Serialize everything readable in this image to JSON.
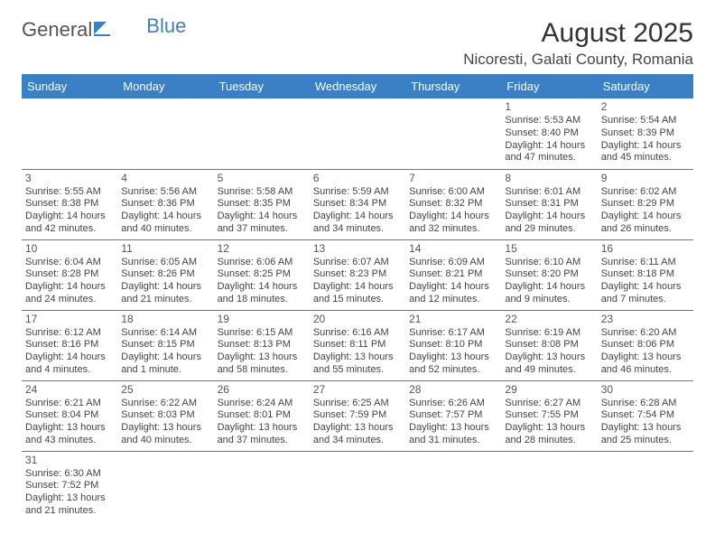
{
  "logo": {
    "text_general": "General",
    "text_blue": "Blue"
  },
  "header": {
    "month_title": "August 2025",
    "location": "Nicoresti, Galati County, Romania"
  },
  "colors": {
    "header_bg": "#3b7fc4",
    "header_text": "#ffffff",
    "row_border": "#3b7fc4",
    "body_text": "#444444",
    "background": "#ffffff"
  },
  "calendar": {
    "day_headers": [
      "Sunday",
      "Monday",
      "Tuesday",
      "Wednesday",
      "Thursday",
      "Friday",
      "Saturday"
    ],
    "weeks": [
      [
        null,
        null,
        null,
        null,
        null,
        {
          "day": "1",
          "sunrise": "Sunrise: 5:53 AM",
          "sunset": "Sunset: 8:40 PM",
          "daylight1": "Daylight: 14 hours",
          "daylight2": "and 47 minutes."
        },
        {
          "day": "2",
          "sunrise": "Sunrise: 5:54 AM",
          "sunset": "Sunset: 8:39 PM",
          "daylight1": "Daylight: 14 hours",
          "daylight2": "and 45 minutes."
        }
      ],
      [
        {
          "day": "3",
          "sunrise": "Sunrise: 5:55 AM",
          "sunset": "Sunset: 8:38 PM",
          "daylight1": "Daylight: 14 hours",
          "daylight2": "and 42 minutes."
        },
        {
          "day": "4",
          "sunrise": "Sunrise: 5:56 AM",
          "sunset": "Sunset: 8:36 PM",
          "daylight1": "Daylight: 14 hours",
          "daylight2": "and 40 minutes."
        },
        {
          "day": "5",
          "sunrise": "Sunrise: 5:58 AM",
          "sunset": "Sunset: 8:35 PM",
          "daylight1": "Daylight: 14 hours",
          "daylight2": "and 37 minutes."
        },
        {
          "day": "6",
          "sunrise": "Sunrise: 5:59 AM",
          "sunset": "Sunset: 8:34 PM",
          "daylight1": "Daylight: 14 hours",
          "daylight2": "and 34 minutes."
        },
        {
          "day": "7",
          "sunrise": "Sunrise: 6:00 AM",
          "sunset": "Sunset: 8:32 PM",
          "daylight1": "Daylight: 14 hours",
          "daylight2": "and 32 minutes."
        },
        {
          "day": "8",
          "sunrise": "Sunrise: 6:01 AM",
          "sunset": "Sunset: 8:31 PM",
          "daylight1": "Daylight: 14 hours",
          "daylight2": "and 29 minutes."
        },
        {
          "day": "9",
          "sunrise": "Sunrise: 6:02 AM",
          "sunset": "Sunset: 8:29 PM",
          "daylight1": "Daylight: 14 hours",
          "daylight2": "and 26 minutes."
        }
      ],
      [
        {
          "day": "10",
          "sunrise": "Sunrise: 6:04 AM",
          "sunset": "Sunset: 8:28 PM",
          "daylight1": "Daylight: 14 hours",
          "daylight2": "and 24 minutes."
        },
        {
          "day": "11",
          "sunrise": "Sunrise: 6:05 AM",
          "sunset": "Sunset: 8:26 PM",
          "daylight1": "Daylight: 14 hours",
          "daylight2": "and 21 minutes."
        },
        {
          "day": "12",
          "sunrise": "Sunrise: 6:06 AM",
          "sunset": "Sunset: 8:25 PM",
          "daylight1": "Daylight: 14 hours",
          "daylight2": "and 18 minutes."
        },
        {
          "day": "13",
          "sunrise": "Sunrise: 6:07 AM",
          "sunset": "Sunset: 8:23 PM",
          "daylight1": "Daylight: 14 hours",
          "daylight2": "and 15 minutes."
        },
        {
          "day": "14",
          "sunrise": "Sunrise: 6:09 AM",
          "sunset": "Sunset: 8:21 PM",
          "daylight1": "Daylight: 14 hours",
          "daylight2": "and 12 minutes."
        },
        {
          "day": "15",
          "sunrise": "Sunrise: 6:10 AM",
          "sunset": "Sunset: 8:20 PM",
          "daylight1": "Daylight: 14 hours",
          "daylight2": "and 9 minutes."
        },
        {
          "day": "16",
          "sunrise": "Sunrise: 6:11 AM",
          "sunset": "Sunset: 8:18 PM",
          "daylight1": "Daylight: 14 hours",
          "daylight2": "and 7 minutes."
        }
      ],
      [
        {
          "day": "17",
          "sunrise": "Sunrise: 6:12 AM",
          "sunset": "Sunset: 8:16 PM",
          "daylight1": "Daylight: 14 hours",
          "daylight2": "and 4 minutes."
        },
        {
          "day": "18",
          "sunrise": "Sunrise: 6:14 AM",
          "sunset": "Sunset: 8:15 PM",
          "daylight1": "Daylight: 14 hours",
          "daylight2": "and 1 minute."
        },
        {
          "day": "19",
          "sunrise": "Sunrise: 6:15 AM",
          "sunset": "Sunset: 8:13 PM",
          "daylight1": "Daylight: 13 hours",
          "daylight2": "and 58 minutes."
        },
        {
          "day": "20",
          "sunrise": "Sunrise: 6:16 AM",
          "sunset": "Sunset: 8:11 PM",
          "daylight1": "Daylight: 13 hours",
          "daylight2": "and 55 minutes."
        },
        {
          "day": "21",
          "sunrise": "Sunrise: 6:17 AM",
          "sunset": "Sunset: 8:10 PM",
          "daylight1": "Daylight: 13 hours",
          "daylight2": "and 52 minutes."
        },
        {
          "day": "22",
          "sunrise": "Sunrise: 6:19 AM",
          "sunset": "Sunset: 8:08 PM",
          "daylight1": "Daylight: 13 hours",
          "daylight2": "and 49 minutes."
        },
        {
          "day": "23",
          "sunrise": "Sunrise: 6:20 AM",
          "sunset": "Sunset: 8:06 PM",
          "daylight1": "Daylight: 13 hours",
          "daylight2": "and 46 minutes."
        }
      ],
      [
        {
          "day": "24",
          "sunrise": "Sunrise: 6:21 AM",
          "sunset": "Sunset: 8:04 PM",
          "daylight1": "Daylight: 13 hours",
          "daylight2": "and 43 minutes."
        },
        {
          "day": "25",
          "sunrise": "Sunrise: 6:22 AM",
          "sunset": "Sunset: 8:03 PM",
          "daylight1": "Daylight: 13 hours",
          "daylight2": "and 40 minutes."
        },
        {
          "day": "26",
          "sunrise": "Sunrise: 6:24 AM",
          "sunset": "Sunset: 8:01 PM",
          "daylight1": "Daylight: 13 hours",
          "daylight2": "and 37 minutes."
        },
        {
          "day": "27",
          "sunrise": "Sunrise: 6:25 AM",
          "sunset": "Sunset: 7:59 PM",
          "daylight1": "Daylight: 13 hours",
          "daylight2": "and 34 minutes."
        },
        {
          "day": "28",
          "sunrise": "Sunrise: 6:26 AM",
          "sunset": "Sunset: 7:57 PM",
          "daylight1": "Daylight: 13 hours",
          "daylight2": "and 31 minutes."
        },
        {
          "day": "29",
          "sunrise": "Sunrise: 6:27 AM",
          "sunset": "Sunset: 7:55 PM",
          "daylight1": "Daylight: 13 hours",
          "daylight2": "and 28 minutes."
        },
        {
          "day": "30",
          "sunrise": "Sunrise: 6:28 AM",
          "sunset": "Sunset: 7:54 PM",
          "daylight1": "Daylight: 13 hours",
          "daylight2": "and 25 minutes."
        }
      ],
      [
        {
          "day": "31",
          "sunrise": "Sunrise: 6:30 AM",
          "sunset": "Sunset: 7:52 PM",
          "daylight1": "Daylight: 13 hours",
          "daylight2": "and 21 minutes."
        },
        null,
        null,
        null,
        null,
        null,
        null
      ]
    ]
  }
}
